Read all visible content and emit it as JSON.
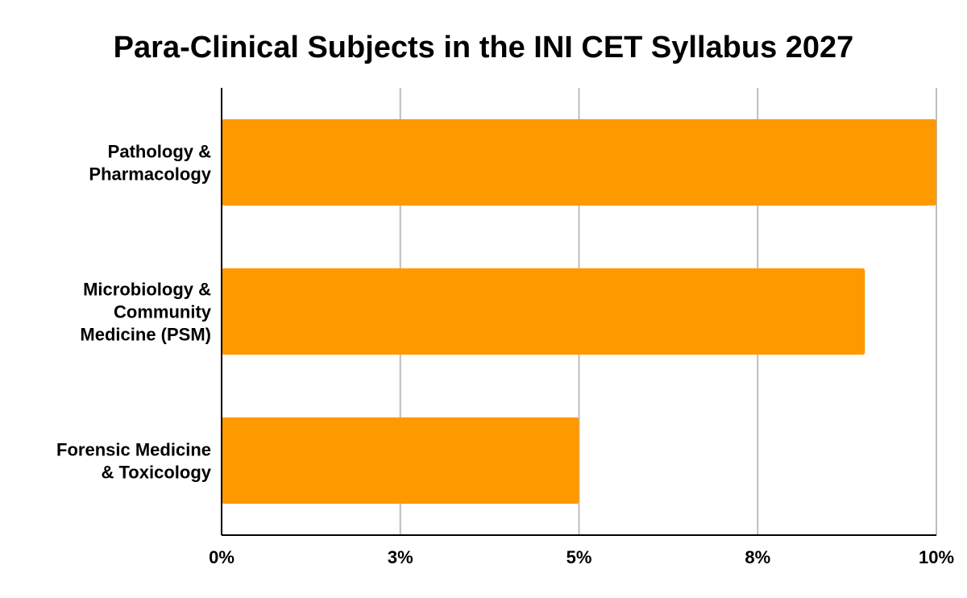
{
  "chart_data": {
    "type": "bar",
    "orientation": "horizontal",
    "title": "Para-Clinical Subjects in the INI CET Syllabus 2027",
    "xlabel": "",
    "ylabel": "",
    "categories": [
      [
        "Pathology &",
        "Pharmacology"
      ],
      [
        "Microbiology &",
        "Community",
        "Medicine (PSM)"
      ],
      [
        "Forensic Medicine",
        "& Toxicology"
      ]
    ],
    "values": [
      10,
      9,
      5
    ],
    "xlim": [
      0,
      10
    ],
    "x_ticks": [
      0,
      2.5,
      5,
      7.5,
      10
    ],
    "x_tick_labels": [
      "0%",
      "3%",
      "5%",
      "8%",
      "10%"
    ],
    "bar_color": "#ff9900",
    "grid": true,
    "legend": "none"
  }
}
